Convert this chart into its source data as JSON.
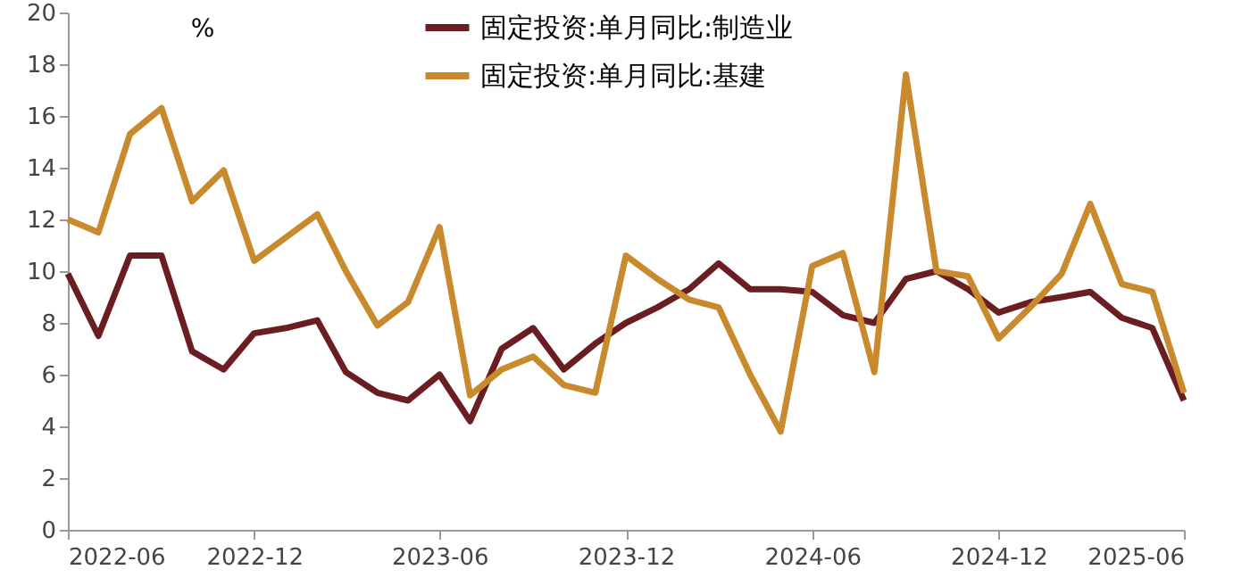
{
  "chart_data": {
    "type": "line",
    "ylabel": "%",
    "x": [
      "2022-06",
      "2022-07",
      "2022-08",
      "2022-09",
      "2022-10",
      "2022-11",
      "2022-12",
      "2023-01",
      "2023-02",
      "2023-03",
      "2023-04",
      "2023-05",
      "2023-06",
      "2023-07",
      "2023-08",
      "2023-09",
      "2023-10",
      "2023-11",
      "2023-12",
      "2024-01",
      "2024-02",
      "2024-03",
      "2024-04",
      "2024-05",
      "2024-06",
      "2024-07",
      "2024-08",
      "2024-09",
      "2024-10",
      "2024-11",
      "2024-12",
      "2025-01",
      "2025-02",
      "2025-03",
      "2025-04",
      "2025-05",
      "2025-06"
    ],
    "series": [
      {
        "name": "固定投资:单月同比:制造业",
        "color": "#6b1e22",
        "values": [
          9.9,
          7.5,
          10.6,
          10.6,
          6.9,
          6.2,
          7.6,
          7.8,
          8.1,
          6.1,
          5.3,
          5.0,
          6.0,
          4.2,
          7.0,
          7.8,
          6.2,
          7.2,
          8.0,
          8.6,
          9.3,
          10.3,
          9.3,
          9.3,
          9.2,
          8.3,
          8.0,
          9.7,
          10.0,
          9.3,
          8.4,
          8.8,
          9.0,
          9.2,
          8.2,
          7.8,
          5.0
        ]
      },
      {
        "name": "固定投资:单月同比:基建",
        "color": "#c98a2e",
        "values": [
          12.0,
          11.5,
          15.3,
          16.3,
          12.7,
          13.9,
          10.4,
          11.3,
          12.2,
          10.0,
          7.9,
          8.8,
          11.7,
          5.2,
          6.2,
          6.7,
          5.6,
          5.3,
          10.6,
          9.7,
          8.9,
          8.6,
          6.0,
          3.8,
          10.2,
          10.7,
          6.1,
          17.6,
          10.0,
          9.8,
          7.4,
          8.6,
          9.9,
          12.6,
          9.5,
          9.2,
          5.3
        ]
      }
    ],
    "ylim": [
      0,
      20
    ],
    "yticks": [
      0,
      2,
      4,
      6,
      8,
      10,
      12,
      14,
      16,
      18,
      20
    ],
    "xlim": [
      "2022-06",
      "2025-06"
    ],
    "xticks": [
      "2022-06",
      "2022-12",
      "2023-06",
      "2023-12",
      "2024-06",
      "2024-12",
      "2025-06"
    ],
    "grid": false,
    "legend": "top",
    "line_style": "solid",
    "marker": "none"
  }
}
